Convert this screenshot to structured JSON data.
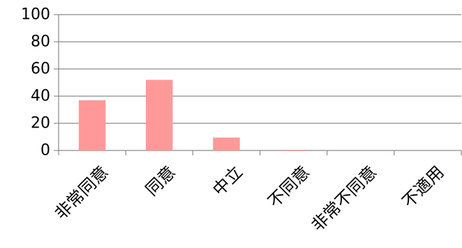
{
  "chart_data": {
    "type": "bar",
    "title": "",
    "xlabel": "",
    "ylabel": "",
    "categories": [
      "非常同意",
      "同意",
      "中立",
      "不同意",
      "非常不同意",
      "不適用"
    ],
    "values": [
      37,
      52,
      9.5,
      0.5,
      0,
      0
    ],
    "ylim": [
      0,
      100
    ],
    "yticks": [
      0,
      20,
      40,
      60,
      80,
      100
    ],
    "grid": true,
    "legend": "none",
    "bar_color": "#FF9999",
    "grid_color": "#8A8A8A",
    "text_color": "#000000"
  }
}
